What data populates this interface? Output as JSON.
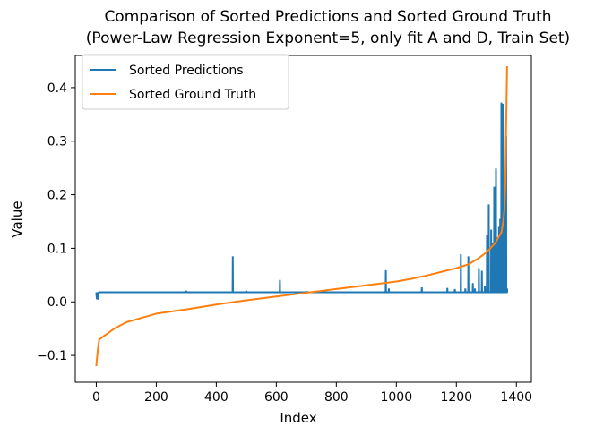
{
  "chart_data": {
    "type": "line",
    "title": "Comparison of Sorted Predictions and Sorted Ground Truth",
    "subtitle": "(Power-Law Regression Exponent=5, only fit A and D, Train Set)",
    "xlabel": "Index",
    "ylabel": "Value",
    "xlim": [
      -70,
      1450
    ],
    "ylim": [
      -0.15,
      0.46
    ],
    "xticks": [
      0,
      200,
      400,
      600,
      800,
      1000,
      1200,
      1400
    ],
    "xtick_labels": [
      "0",
      "200",
      "400",
      "600",
      "800",
      "1000",
      "1200",
      "1400"
    ],
    "yticks": [
      -0.1,
      0.0,
      0.1,
      0.2,
      0.3,
      0.4
    ],
    "ytick_labels": [
      "−0.1",
      "0.0",
      "0.1",
      "0.2",
      "0.3",
      "0.4"
    ],
    "legend_position": "top-left",
    "grid": false,
    "series": [
      {
        "name": "Sorted Predictions",
        "color": "#1f77b4",
        "baseline": 0.018,
        "baseline_range": [
          0,
          1370
        ],
        "start_dips": [
          [
            2,
            0.005
          ],
          [
            4,
            0.012
          ],
          [
            6,
            0.004
          ],
          [
            8,
            0.015
          ]
        ],
        "spikes": [
          [
            300,
            0.021
          ],
          [
            455,
            0.085
          ],
          [
            500,
            0.021
          ],
          [
            612,
            0.041
          ],
          [
            700,
            0.02
          ],
          [
            965,
            0.059
          ],
          [
            975,
            0.025
          ],
          [
            1085,
            0.027
          ],
          [
            1170,
            0.026
          ],
          [
            1195,
            0.024
          ],
          [
            1215,
            0.089
          ],
          [
            1230,
            0.025
          ],
          [
            1240,
            0.085
          ],
          [
            1255,
            0.035
          ],
          [
            1262,
            0.025
          ],
          [
            1275,
            0.063
          ],
          [
            1285,
            0.058
          ],
          [
            1295,
            0.03
          ],
          [
            1302,
            0.125
          ],
          [
            1308,
            0.182
          ],
          [
            1316,
            0.135
          ],
          [
            1320,
            0.11
          ],
          [
            1326,
            0.215
          ],
          [
            1332,
            0.249
          ],
          [
            1336,
            0.12
          ],
          [
            1342,
            0.14
          ],
          [
            1346,
            0.155
          ],
          [
            1350,
            0.372
          ],
          [
            1353,
            0.25
          ],
          [
            1356,
            0.37
          ],
          [
            1360,
            0.22
          ],
          [
            1363,
            0.17
          ],
          [
            1366,
            0.31
          ],
          [
            1369,
            0.025
          ]
        ]
      },
      {
        "name": "Sorted Ground Truth",
        "color": "#ff7f0e",
        "points": [
          [
            0,
            -0.12
          ],
          [
            5,
            -0.09
          ],
          [
            10,
            -0.07
          ],
          [
            30,
            -0.062
          ],
          [
            60,
            -0.05
          ],
          [
            100,
            -0.038
          ],
          [
            150,
            -0.03
          ],
          [
            200,
            -0.022
          ],
          [
            300,
            -0.014
          ],
          [
            400,
            -0.005
          ],
          [
            500,
            0.003
          ],
          [
            600,
            0.01
          ],
          [
            700,
            0.017
          ],
          [
            800,
            0.024
          ],
          [
            900,
            0.031
          ],
          [
            1000,
            0.038
          ],
          [
            1050,
            0.043
          ],
          [
            1100,
            0.049
          ],
          [
            1150,
            0.056
          ],
          [
            1200,
            0.063
          ],
          [
            1240,
            0.07
          ],
          [
            1270,
            0.08
          ],
          [
            1290,
            0.088
          ],
          [
            1310,
            0.098
          ],
          [
            1330,
            0.11
          ],
          [
            1340,
            0.12
          ],
          [
            1350,
            0.13
          ],
          [
            1355,
            0.145
          ],
          [
            1360,
            0.17
          ],
          [
            1363,
            0.22
          ],
          [
            1365,
            0.3
          ],
          [
            1367,
            0.37
          ],
          [
            1369,
            0.44
          ]
        ]
      }
    ]
  }
}
